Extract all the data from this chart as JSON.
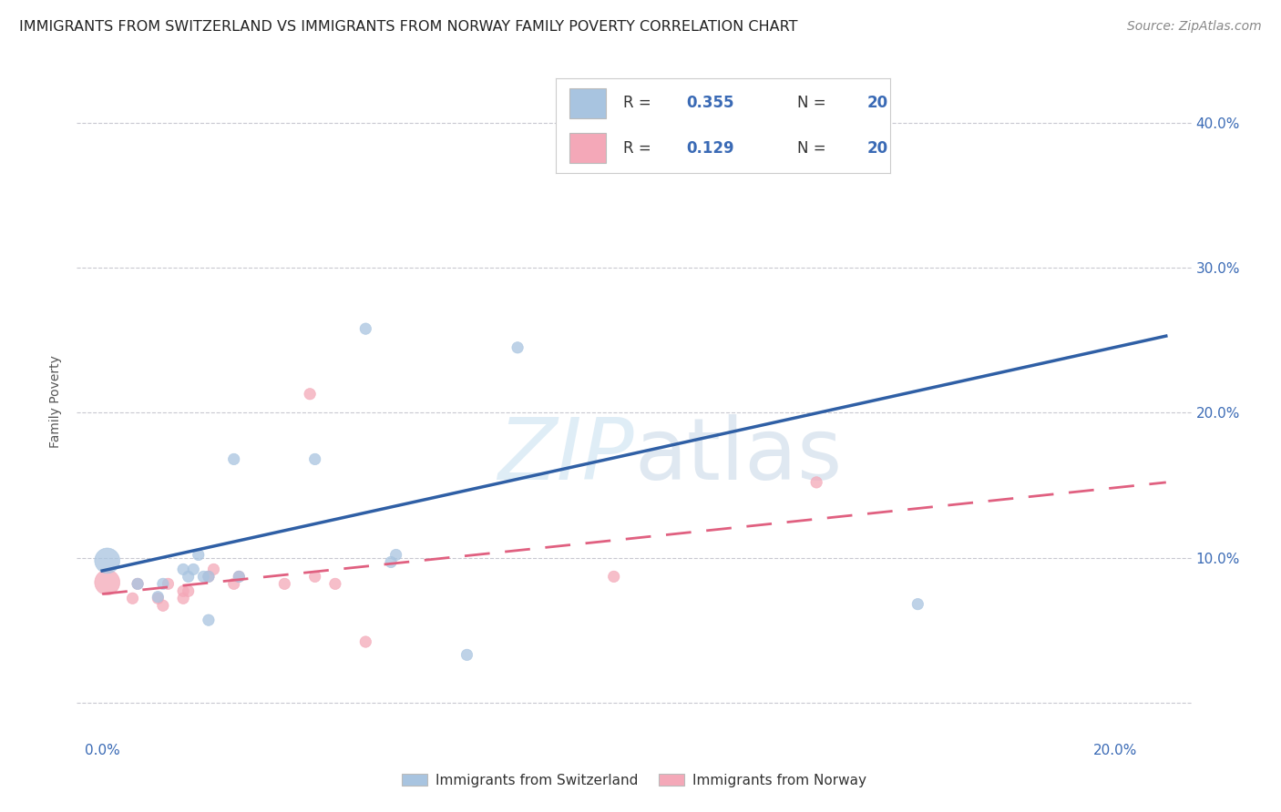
{
  "title": "IMMIGRANTS FROM SWITZERLAND VS IMMIGRANTS FROM NORWAY FAMILY POVERTY CORRELATION CHART",
  "source": "Source: ZipAtlas.com",
  "ylabel": "Family Poverty",
  "watermark": "ZIPatlas",
  "x_ticks": [
    0.0,
    0.05,
    0.1,
    0.15,
    0.2
  ],
  "x_tick_labels": [
    "0.0%",
    "",
    "",
    "",
    "20.0%"
  ],
  "y_ticks": [
    0.0,
    0.1,
    0.2,
    0.3,
    0.4
  ],
  "y_tick_labels": [
    "",
    "10.0%",
    "20.0%",
    "30.0%",
    "40.0%"
  ],
  "xlim": [
    -0.005,
    0.215
  ],
  "ylim": [
    -0.025,
    0.44
  ],
  "swiss_R": 0.355,
  "swiss_N": 20,
  "norway_R": 0.129,
  "norway_N": 20,
  "swiss_color": "#a8c4e0",
  "norway_color": "#f4a8b8",
  "swiss_line_color": "#2f5fa5",
  "norway_line_color": "#e06080",
  "background_color": "#ffffff",
  "grid_color": "#c8c8d0",
  "swiss_scatter_x": [
    0.001,
    0.007,
    0.011,
    0.012,
    0.016,
    0.017,
    0.018,
    0.019,
    0.02,
    0.021,
    0.021,
    0.026,
    0.027,
    0.042,
    0.052,
    0.057,
    0.058,
    0.072,
    0.161,
    0.082
  ],
  "swiss_scatter_y": [
    0.098,
    0.082,
    0.073,
    0.082,
    0.092,
    0.087,
    0.092,
    0.102,
    0.087,
    0.087,
    0.057,
    0.168,
    0.087,
    0.168,
    0.258,
    0.097,
    0.102,
    0.033,
    0.068,
    0.245
  ],
  "swiss_scatter_size": [
    400,
    80,
    80,
    80,
    80,
    80,
    80,
    80,
    80,
    80,
    80,
    80,
    80,
    80,
    80,
    80,
    80,
    80,
    80,
    80
  ],
  "norway_scatter_x": [
    0.001,
    0.006,
    0.007,
    0.011,
    0.012,
    0.013,
    0.016,
    0.016,
    0.017,
    0.021,
    0.022,
    0.026,
    0.027,
    0.036,
    0.041,
    0.042,
    0.046,
    0.052,
    0.101,
    0.141
  ],
  "norway_scatter_y": [
    0.083,
    0.072,
    0.082,
    0.072,
    0.067,
    0.082,
    0.077,
    0.072,
    0.077,
    0.087,
    0.092,
    0.082,
    0.087,
    0.082,
    0.213,
    0.087,
    0.082,
    0.042,
    0.087,
    0.152
  ],
  "norway_scatter_size": [
    400,
    80,
    80,
    80,
    80,
    80,
    80,
    80,
    80,
    80,
    80,
    80,
    80,
    80,
    80,
    80,
    80,
    80,
    80,
    80
  ],
  "swiss_line_x0": 0.0,
  "swiss_line_y0": 0.091,
  "swiss_line_x1": 0.21,
  "swiss_line_y1": 0.253,
  "norway_line_x0": 0.0,
  "norway_line_y0": 0.075,
  "norway_line_x1": 0.21,
  "norway_line_y1": 0.152,
  "legend_label_swiss": "Immigrants from Switzerland",
  "legend_label_norway": "Immigrants from Norway",
  "title_fontsize": 11.5,
  "axis_label_fontsize": 10,
  "tick_fontsize": 11,
  "source_fontsize": 10
}
